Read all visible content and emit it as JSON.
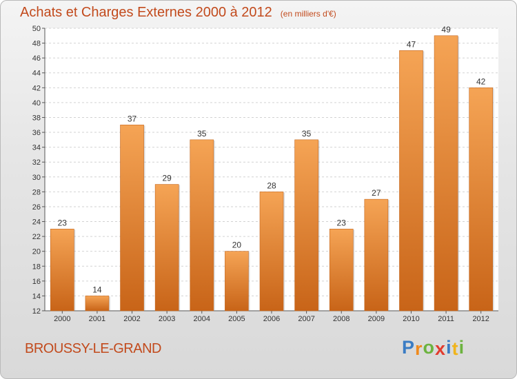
{
  "chart_data": {
    "type": "bar",
    "title": "Achats et Charges Externes 2000 à 2012",
    "subtitle": "(en milliers d'€)",
    "categories": [
      "2000",
      "2001",
      "2002",
      "2003",
      "2004",
      "2005",
      "2006",
      "2007",
      "2008",
      "2009",
      "2010",
      "2011",
      "2012"
    ],
    "values": [
      23,
      14,
      37,
      29,
      35,
      20,
      28,
      35,
      23,
      27,
      47,
      49,
      42
    ],
    "ylim": [
      12,
      50
    ],
    "yticks": [
      12,
      14,
      16,
      18,
      20,
      22,
      24,
      26,
      28,
      30,
      32,
      34,
      36,
      38,
      40,
      42,
      44,
      46,
      48,
      50
    ],
    "grid": true,
    "bar_color_top": "#f5a455",
    "bar_color_bottom": "#c86418"
  },
  "footer": {
    "town": "BROUSSY-LE-GRAND",
    "brand": {
      "letters": [
        "P",
        "r",
        "o",
        "x",
        "i",
        "t",
        "i"
      ],
      "colors": [
        "#3a7cc4",
        "#f08a1c",
        "#6cb33f",
        "#e23c2e",
        "#3a7cc4",
        "#f0b41c",
        "#6cb33f"
      ]
    }
  }
}
